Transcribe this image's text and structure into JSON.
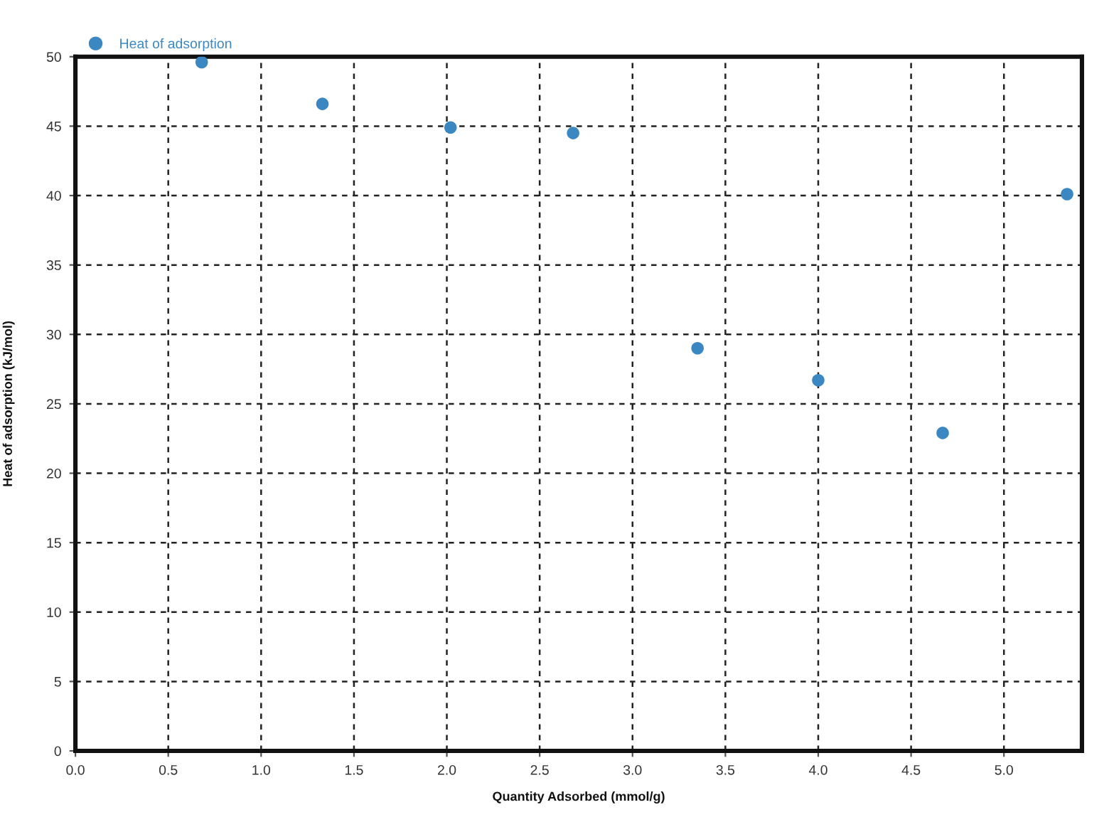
{
  "chart_data": {
    "type": "scatter",
    "xlabel": "Quantity Adsorbed (mmol/g)",
    "ylabel": "Heat of adsorption (kJ/mol)",
    "x": [
      0.68,
      1.33,
      2.02,
      2.68,
      3.35,
      4.0,
      4.67,
      5.34
    ],
    "series": [
      {
        "name": "Heat of adsorption",
        "color": "#3a87c2",
        "values": [
          49.6,
          46.6,
          44.9,
          44.5,
          29.0,
          26.7,
          22.9,
          40.1
        ]
      }
    ],
    "xlim": [
      0,
      5.42
    ],
    "xticks": [
      {
        "value": 0,
        "label": "0.0"
      },
      0.5,
      {
        "value": 1,
        "label": "1.0"
      },
      1.5,
      {
        "value": 2,
        "label": "2.0"
      },
      2.5,
      {
        "value": 3,
        "label": "3.0"
      },
      3.5,
      {
        "value": 4,
        "label": "4.0"
      },
      4.5,
      {
        "value": 5,
        "label": "5.0"
      }
    ],
    "ylim": [
      0,
      50
    ],
    "yticks": [
      0,
      5,
      10,
      15,
      20,
      25,
      30,
      35,
      40,
      45,
      50
    ],
    "grid": true,
    "legend": "top left",
    "marker": "circle"
  }
}
